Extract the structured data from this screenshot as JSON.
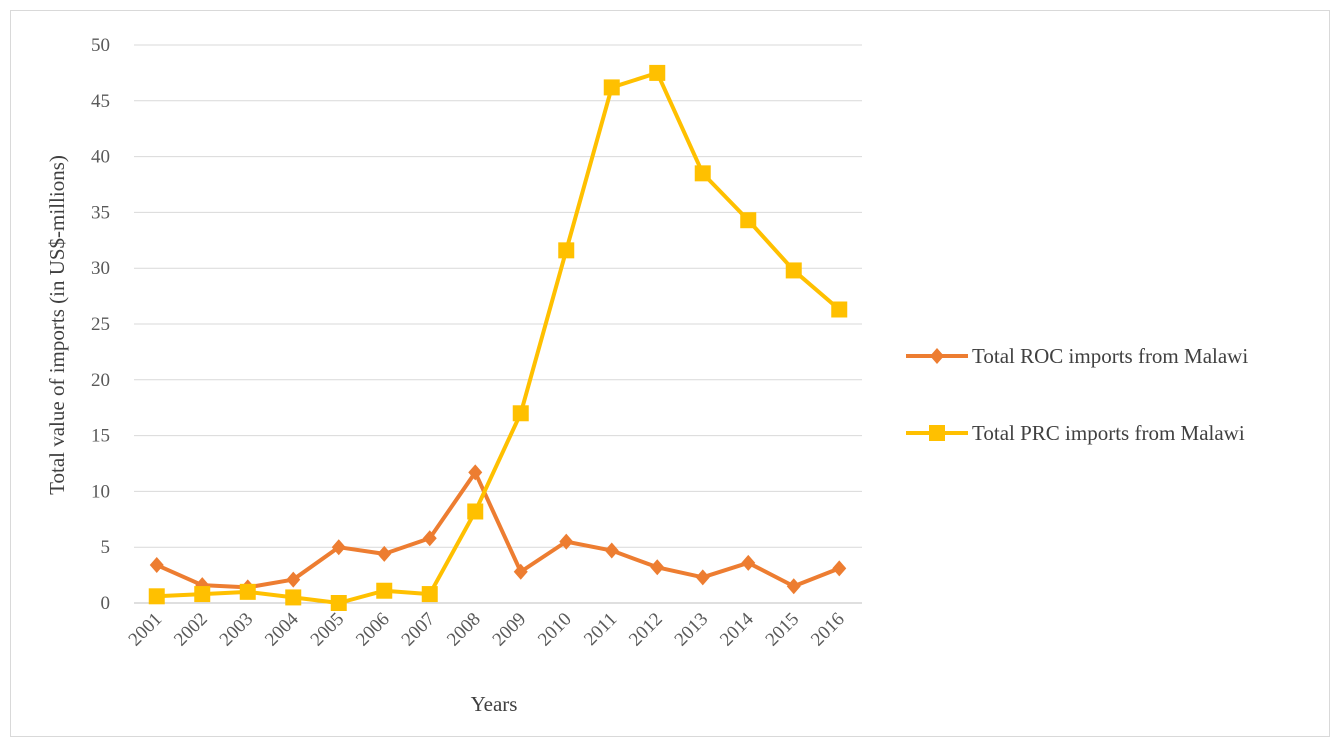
{
  "chart_data": {
    "type": "line",
    "title": "",
    "xlabel": "Years",
    "ylabel": "Total value of imports (in US$-millions)",
    "categories": [
      "2001",
      "2002",
      "2003",
      "2004",
      "2005",
      "2006",
      "2007",
      "2008",
      "2009",
      "2010",
      "2011",
      "2012",
      "2013",
      "2014",
      "2015",
      "2016"
    ],
    "ylim": [
      0,
      50
    ],
    "yticks": [
      0,
      5,
      10,
      15,
      20,
      25,
      30,
      35,
      40,
      45,
      50
    ],
    "grid": "horizontal",
    "legend_position": "right",
    "series": [
      {
        "name": "Total ROC imports from Malawi",
        "color": "#ED7D31",
        "marker": "diamond",
        "values": [
          3.4,
          1.6,
          1.4,
          2.1,
          5.0,
          4.4,
          5.8,
          11.7,
          2.8,
          5.5,
          4.7,
          3.2,
          2.3,
          3.6,
          1.5,
          3.1
        ]
      },
      {
        "name": "Total PRC imports from Malawi",
        "color": "#FFC000",
        "marker": "square",
        "values": [
          0.6,
          0.8,
          1.0,
          0.5,
          0.0,
          1.1,
          0.8,
          8.2,
          17.0,
          31.6,
          46.2,
          47.5,
          38.5,
          34.3,
          29.8,
          26.3
        ]
      }
    ]
  }
}
